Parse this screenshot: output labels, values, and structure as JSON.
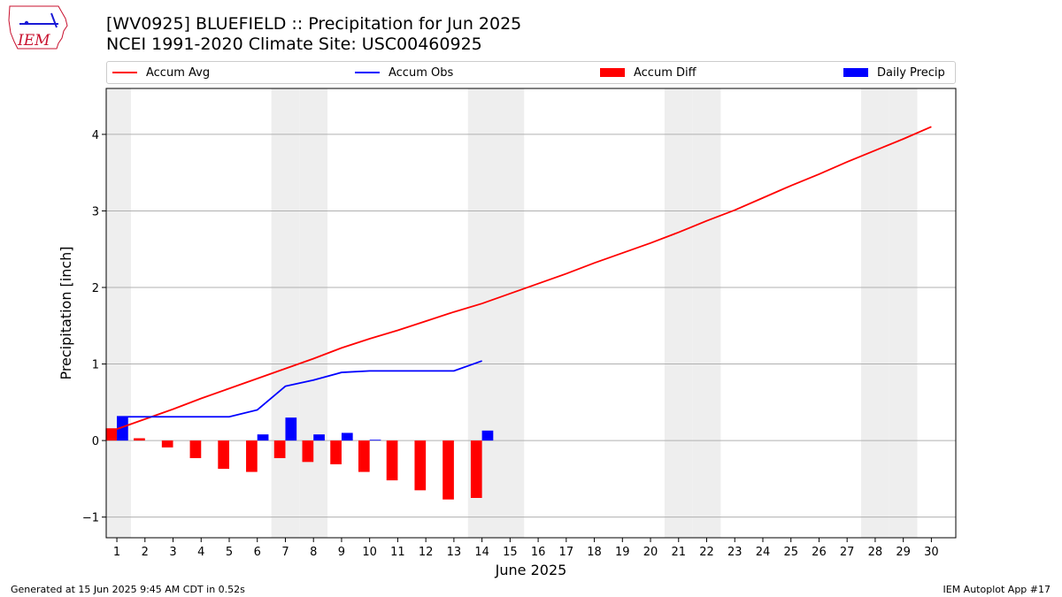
{
  "header": {
    "title": "[WV0925] BLUEFIELD :: Precipitation for Jun 2025",
    "subtitle": "NCEI 1991-2020 Climate Site: USC00460925"
  },
  "logo": {
    "text": "IEM"
  },
  "footer": {
    "left": "Generated at 15 Jun 2025 9:45 AM CDT in 0.52s",
    "right": "IEM Autoplot App #17"
  },
  "colors": {
    "accum_avg": "#ff0000",
    "accum_obs": "#0000ff",
    "accum_diff": "#ff0000",
    "daily_precip": "#0000ff",
    "weekend_shade": "#eeeeee",
    "grid": "#b0b0b0"
  },
  "chart_data": {
    "type": "bar",
    "title": "[WV0925] BLUEFIELD :: Precipitation for Jun 2025",
    "xlabel": "June 2025",
    "ylabel": "Precipitation [inch]",
    "xlim": [
      1,
      30
    ],
    "ylim": [
      -1.27,
      4.6
    ],
    "x_ticks": [
      1,
      2,
      3,
      4,
      5,
      6,
      7,
      8,
      9,
      10,
      11,
      12,
      13,
      14,
      15,
      16,
      17,
      18,
      19,
      20,
      21,
      22,
      23,
      24,
      25,
      26,
      27,
      28,
      29,
      30
    ],
    "y_ticks": [
      -1,
      0,
      1,
      2,
      3,
      4
    ],
    "y_tick_labels": [
      "−1",
      "0",
      "1",
      "2",
      "3",
      "4"
    ],
    "grid": "horizontal",
    "legend_position": "top",
    "weekend_days": [
      1,
      7,
      8,
      14,
      15,
      21,
      22,
      28,
      29
    ],
    "legend": [
      "Accum Avg",
      "Accum Obs",
      "Accum Diff",
      "Daily Precip"
    ],
    "series": [
      {
        "name": "Accum Avg",
        "kind": "line",
        "x": [
          1,
          2,
          3,
          4,
          5,
          6,
          7,
          8,
          9,
          10,
          11,
          12,
          13,
          14,
          15,
          16,
          17,
          18,
          19,
          20,
          21,
          22,
          23,
          24,
          25,
          26,
          27,
          28,
          29,
          30
        ],
        "values": [
          0.15,
          0.28,
          0.41,
          0.55,
          0.68,
          0.81,
          0.94,
          1.07,
          1.21,
          1.33,
          1.44,
          1.56,
          1.68,
          1.79,
          1.92,
          2.05,
          2.18,
          2.32,
          2.45,
          2.58,
          2.72,
          2.87,
          3.01,
          3.17,
          3.33,
          3.48,
          3.64,
          3.79,
          3.94,
          4.1
        ]
      },
      {
        "name": "Accum Obs",
        "kind": "line",
        "x": [
          1,
          2,
          3,
          4,
          5,
          6,
          7,
          8,
          9,
          10,
          11,
          12,
          13,
          14
        ],
        "values": [
          0.31,
          0.31,
          0.31,
          0.31,
          0.31,
          0.4,
          0.71,
          0.79,
          0.89,
          0.91,
          0.91,
          0.91,
          0.91,
          1.04
        ]
      },
      {
        "name": "Accum Diff",
        "kind": "bar",
        "x": [
          1,
          2,
          3,
          4,
          5,
          6,
          7,
          8,
          9,
          10,
          11,
          12,
          13,
          14
        ],
        "values": [
          0.16,
          0.03,
          -0.09,
          -0.23,
          -0.37,
          -0.41,
          -0.23,
          -0.28,
          -0.31,
          -0.41,
          -0.52,
          -0.65,
          -0.77,
          -0.75
        ]
      },
      {
        "name": "Daily Precip",
        "kind": "bar",
        "x": [
          1,
          2,
          3,
          4,
          5,
          6,
          7,
          8,
          9,
          10,
          11,
          12,
          13,
          14
        ],
        "values": [
          0.31,
          0.0,
          0.0,
          0.0,
          0.0,
          0.08,
          0.3,
          0.08,
          0.1,
          0.01,
          0.0,
          0.0,
          0.0,
          0.13
        ]
      }
    ]
  }
}
